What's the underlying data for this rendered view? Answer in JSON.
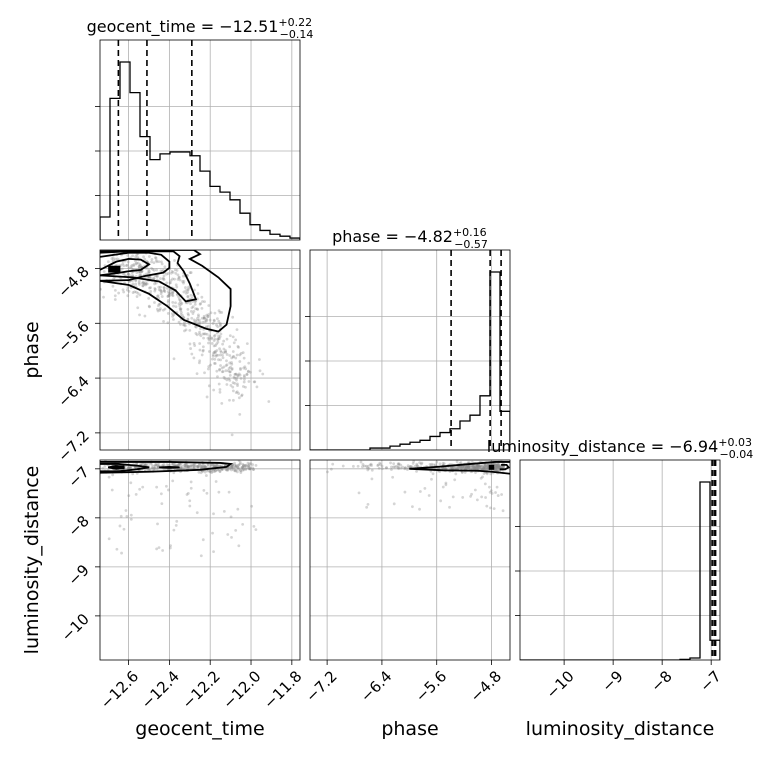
{
  "chart_data": {
    "type": "corner",
    "parameters": [
      "geocent_time",
      "phase",
      "luminosity_distance"
    ],
    "titles": {
      "geocent_time": {
        "name": "geocent_time",
        "median": "−12.51",
        "plus": "+0.22",
        "minus": "−0.14"
      },
      "phase": {
        "name": "phase",
        "median": "−4.82",
        "plus": "+0.16",
        "minus": "−0.57"
      },
      "luminosity_distance": {
        "name": "luminosity_distance",
        "median": "−6.94",
        "plus": "+0.03",
        "minus": "−0.04"
      }
    },
    "ranges": {
      "geocent_time": [
        -12.74,
        -11.76
      ],
      "phase": [
        -7.45,
        -4.53
      ],
      "luminosity_distance": [
        -10.9,
        -6.82
      ]
    },
    "ticks": {
      "geocent_time": {
        "values": [
          -12.6,
          -12.4,
          -12.2,
          -12.0,
          -11.8
        ],
        "labels": [
          "−12.6",
          "−12.4",
          "−12.2",
          "−12.0",
          "−11.8"
        ]
      },
      "phase": {
        "values": [
          -7.2,
          -6.4,
          -5.6,
          -4.8
        ],
        "labels": [
          "−7.2",
          "−6.4",
          "−5.6",
          "−4.8"
        ]
      },
      "luminosity_distance": {
        "values": [
          -10,
          -9,
          -8,
          -7
        ],
        "labels": [
          "−10",
          "−9",
          "−8",
          "−7"
        ]
      }
    },
    "quantiles": {
      "geocent_time": [
        -12.65,
        -12.51,
        -12.29
      ],
      "phase": [
        -5.39,
        -4.82,
        -4.66
      ],
      "luminosity_distance": [
        -6.98,
        -6.94,
        -6.91
      ]
    },
    "histograms": {
      "geocent_time": {
        "edges_start": -12.74,
        "bin_width": 0.049,
        "counts": [
          0.12,
          0.74,
          0.93,
          0.77,
          0.54,
          0.42,
          0.45,
          0.46,
          0.46,
          0.44,
          0.36,
          0.28,
          0.25,
          0.21,
          0.14,
          0.08,
          0.05,
          0.03,
          0.02,
          0.01
        ]
      },
      "phase": {
        "edges_start": -7.45,
        "bin_width": 0.146,
        "counts": [
          0.0,
          0.0,
          0.0,
          0.0,
          0.0,
          0.0,
          0.01,
          0.01,
          0.02,
          0.03,
          0.04,
          0.05,
          0.07,
          0.09,
          0.11,
          0.15,
          0.18,
          0.28,
          0.92,
          0.2
        ]
      },
      "luminosity_distance": {
        "edges_start": -10.9,
        "bin_width": 0.204,
        "counts": [
          0.0,
          0.0,
          0.0,
          0.0,
          0.0,
          0.0,
          0.0,
          0.0,
          0.0,
          0.0,
          0.0,
          0.0,
          0.0,
          0.0,
          0.0,
          0.0,
          0.003,
          0.01,
          0.9,
          0.1
        ]
      }
    },
    "contours": {
      "geocent_time__phase": [
        [
          [
            -12.74,
            -4.82
          ],
          [
            -12.66,
            -4.7
          ],
          [
            -12.6,
            -4.66
          ],
          [
            -12.54,
            -4.67
          ],
          [
            -12.5,
            -4.74
          ],
          [
            -12.54,
            -4.82
          ],
          [
            -12.6,
            -4.84
          ],
          [
            -12.66,
            -4.87
          ],
          [
            -12.74,
            -4.9
          ]
        ],
        [
          [
            -12.74,
            -4.63
          ],
          [
            -12.6,
            -4.57
          ],
          [
            -12.5,
            -4.57
          ],
          [
            -12.44,
            -4.6
          ],
          [
            -12.4,
            -4.7
          ],
          [
            -12.4,
            -4.79
          ],
          [
            -12.43,
            -4.86
          ],
          [
            -12.52,
            -4.91
          ],
          [
            -12.6,
            -4.97
          ],
          [
            -12.74,
            -4.98
          ]
        ],
        [
          [
            -12.74,
            -4.57
          ],
          [
            -12.6,
            -4.55
          ],
          [
            -12.38,
            -4.55
          ],
          [
            -12.35,
            -4.62
          ],
          [
            -12.36,
            -4.72
          ],
          [
            -12.33,
            -4.84
          ],
          [
            -12.3,
            -5.02
          ],
          [
            -12.27,
            -5.25
          ],
          [
            -12.32,
            -5.28
          ],
          [
            -12.37,
            -5.12
          ],
          [
            -12.45,
            -4.99
          ],
          [
            -12.58,
            -4.93
          ],
          [
            -12.74,
            -4.9
          ]
        ],
        [
          [
            -12.74,
            -4.55
          ],
          [
            -12.4,
            -4.53
          ],
          [
            -12.28,
            -4.53
          ],
          [
            -12.25,
            -4.59
          ],
          [
            -12.3,
            -4.66
          ],
          [
            -12.24,
            -4.76
          ],
          [
            -12.16,
            -4.93
          ],
          [
            -12.1,
            -5.1
          ],
          [
            -12.1,
            -5.35
          ],
          [
            -12.12,
            -5.62
          ],
          [
            -12.16,
            -5.72
          ],
          [
            -12.22,
            -5.68
          ],
          [
            -12.33,
            -5.55
          ],
          [
            -12.41,
            -5.35
          ],
          [
            -12.5,
            -5.17
          ],
          [
            -12.6,
            -5.04
          ],
          [
            -12.74,
            -4.98
          ]
        ]
      ],
      "geocent_time__luminosity_distance": [
        [
          [
            -12.66,
            -6.94
          ],
          [
            -12.62,
            -6.97
          ],
          [
            -12.66,
            -7.0
          ],
          [
            -12.7,
            -6.97
          ],
          [
            -12.66,
            -6.94
          ]
        ],
        [
          [
            -12.45,
            -6.97
          ],
          [
            -12.4,
            -6.96
          ],
          [
            -12.35,
            -6.97
          ],
          [
            -12.4,
            -6.98
          ],
          [
            -12.45,
            -6.97
          ]
        ],
        [
          [
            -12.74,
            -6.9
          ],
          [
            -12.65,
            -6.9
          ],
          [
            -12.55,
            -6.94
          ],
          [
            -12.5,
            -6.97
          ],
          [
            -12.56,
            -7.01
          ],
          [
            -12.65,
            -7.05
          ],
          [
            -12.74,
            -7.05
          ]
        ],
        [
          [
            -12.74,
            -6.86
          ],
          [
            -12.4,
            -6.86
          ],
          [
            -12.15,
            -6.88
          ],
          [
            -12.1,
            -6.9
          ],
          [
            -12.12,
            -6.96
          ],
          [
            -12.25,
            -7.02
          ],
          [
            -12.5,
            -7.06
          ],
          [
            -12.74,
            -7.08
          ]
        ]
      ],
      "phase__luminosity_distance": [
        [
          [
            -4.66,
            -6.92
          ],
          [
            -4.58,
            -6.92
          ],
          [
            -4.55,
            -6.97
          ],
          [
            -4.6,
            -7.01
          ],
          [
            -4.68,
            -7.01
          ]
        ],
        [
          [
            -4.53,
            -6.86
          ],
          [
            -4.75,
            -6.86
          ],
          [
            -5.1,
            -6.9
          ],
          [
            -5.6,
            -6.96
          ],
          [
            -6.0,
            -7.0
          ],
          [
            -5.5,
            -7.03
          ],
          [
            -5.0,
            -7.04
          ],
          [
            -4.8,
            -7.06
          ],
          [
            -4.53,
            -7.1
          ]
        ]
      ]
    },
    "density_cores": {
      "geocent_time__phase": [
        [
          -12.7,
          -4.76,
          -12.64,
          -4.86
        ]
      ],
      "geocent_time__luminosity_distance": [
        [
          -12.68,
          -6.93,
          -12.62,
          -7.01
        ]
      ],
      "phase__luminosity_distance": [
        [
          -4.84,
          -6.92,
          -4.76,
          -7.02
        ]
      ]
    },
    "grid": true
  }
}
